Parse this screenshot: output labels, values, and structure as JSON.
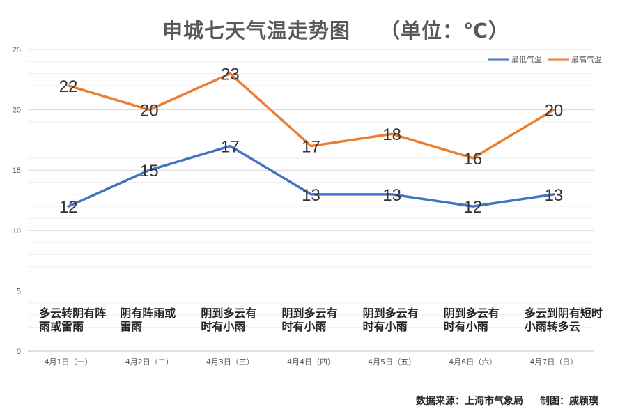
{
  "chart_data": {
    "type": "line",
    "title": "申城七天气温走势图",
    "unit_label": "（单位：℃）",
    "categories": [
      "4月1日（一）",
      "4月2日（二）",
      "4月3日（三）",
      "4月4日（四）",
      "4月5日（五）",
      "4月6日（六）",
      "4月7日（日）"
    ],
    "weather": [
      [
        "多云转阴有阵",
        "雨或雷雨"
      ],
      [
        "阴有阵雨或",
        "雷雨"
      ],
      [
        "阴到多云有",
        "时有小雨"
      ],
      [
        "阴到多云有",
        "时有小雨"
      ],
      [
        "阴到多云有",
        "时有小雨"
      ],
      [
        "阴到多云有",
        "时有小雨"
      ],
      [
        "多云到阴有短时",
        "小雨转多云"
      ]
    ],
    "series": [
      {
        "name": "最低气温",
        "color": "#4472C4",
        "values": [
          12,
          15,
          17,
          13,
          13,
          12,
          13
        ]
      },
      {
        "name": "最高气温",
        "color": "#ED7D31",
        "values": [
          22,
          20,
          23,
          17,
          18,
          16,
          20
        ]
      }
    ],
    "ylim": [
      0,
      25
    ],
    "yticks": [
      0,
      5,
      10,
      15,
      20,
      25
    ],
    "minor_grid_step": 1,
    "grid": true,
    "legend_position": "top-right",
    "source": "数据来源：上海市气象局",
    "credit": "制图：戚颖璞"
  }
}
